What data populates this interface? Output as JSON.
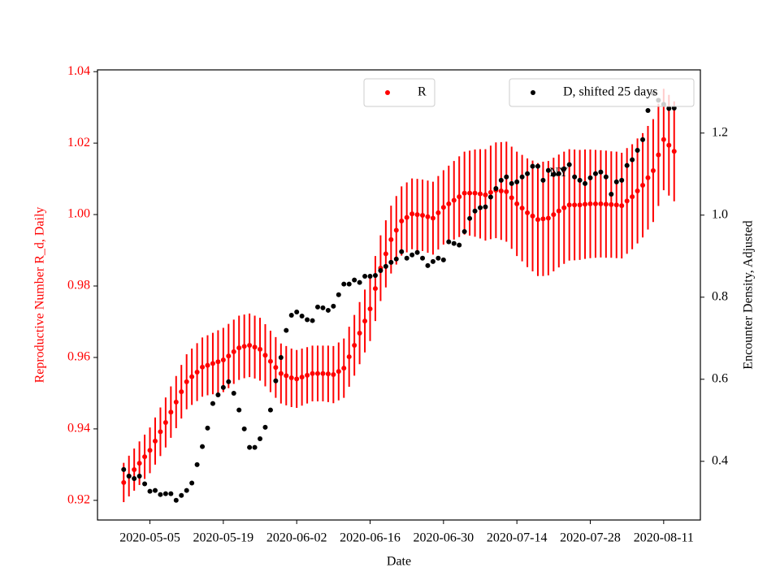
{
  "chart_data": {
    "type": "scatter",
    "annotations": [
      {
        "text": "NY",
        "x": "2020-07-22",
        "y": 1.0115
      }
    ],
    "xlabel": "Date",
    "ylabel": "Reproductive Number R_d, Daily",
    "y2label": "Encounter Density, Adjusted",
    "xlim": [
      "2020-04-25",
      "2020-08-18"
    ],
    "xticks": [
      "2020-05-05",
      "2020-05-19",
      "2020-06-02",
      "2020-06-16",
      "2020-06-30",
      "2020-07-14",
      "2020-07-28",
      "2020-08-11"
    ],
    "ylim": [
      0.9145,
      1.0405
    ],
    "yticks": [
      0.92,
      0.94,
      0.96,
      0.98,
      {
        "value": 1,
        "label": "1.00"
      },
      1.02,
      1.04
    ],
    "y2lim": [
      0.257,
      1.354
    ],
    "y2ticks": [
      0.4,
      0.6,
      0.8,
      {
        "value": 1,
        "label": "1.0"
      },
      1.2
    ],
    "start": "2020-04-30",
    "series": [
      {
        "name": "R",
        "color": "#ff0000",
        "axis": "y",
        "values": [
          0.925,
          0.9268,
          0.9286,
          0.9304,
          0.9322,
          0.934,
          0.9366,
          0.9392,
          0.9418,
          0.9447,
          0.9475,
          0.9504,
          0.9532,
          0.9546,
          0.9559,
          0.9573,
          0.9578,
          0.9583,
          0.9588,
          0.9593,
          0.9604,
          0.9616,
          0.9627,
          0.9631,
          0.9634,
          0.9629,
          0.9623,
          0.9606,
          0.9589,
          0.9572,
          0.9555,
          0.9549,
          0.9543,
          0.954,
          0.9545,
          0.955,
          0.9555,
          0.9555,
          0.9555,
          0.9554,
          0.9552,
          0.9561,
          0.957,
          0.9602,
          0.9634,
          0.9668,
          0.9702,
          0.9736,
          0.9793,
          0.985,
          0.989,
          0.993,
          0.9956,
          0.9982,
          0.9992,
          1.0002,
          1.0,
          0.9998,
          0.9994,
          0.999,
          1.0005,
          1.002,
          1.003,
          1.004,
          1.005,
          1.006,
          1.006,
          1.006,
          1.0058,
          1.0055,
          1.0062,
          1.0068,
          1.0066,
          1.0064,
          1.0047,
          1.003,
          1.0018,
          1.0005,
          0.9996,
          0.9986,
          0.9988,
          0.999,
          1.0,
          1.001,
          1.0019,
          1.0027,
          1.0027,
          1.0027,
          1.0029,
          1.003,
          1.003,
          1.003,
          1.0029,
          1.0028,
          1.0027,
          1.0025,
          1.0038,
          1.005,
          1.0066,
          1.0082,
          1.0103,
          1.0123,
          1.0167,
          1.021,
          1.0194,
          1.0177
        ],
        "errors": [
          0.0055,
          0.0057,
          0.0059,
          0.0061,
          0.0062,
          0.0064,
          0.0066,
          0.0068,
          0.007,
          0.0072,
          0.0073,
          0.0075,
          0.0077,
          0.0079,
          0.0081,
          0.0083,
          0.0084,
          0.0086,
          0.0088,
          0.009,
          0.009,
          0.009,
          0.009,
          0.0089,
          0.0089,
          0.0088,
          0.0088,
          0.0087,
          0.0086,
          0.0085,
          0.0084,
          0.0083,
          0.0082,
          0.0081,
          0.008,
          0.0079,
          0.0078,
          0.0078,
          0.0078,
          0.0079,
          0.008,
          0.0081,
          0.0083,
          0.0084,
          0.0085,
          0.0087,
          0.0088,
          0.009,
          0.0091,
          0.0092,
          0.0094,
          0.0095,
          0.0096,
          0.0097,
          0.0098,
          0.0099,
          0.01,
          0.01,
          0.0101,
          0.0102,
          0.0103,
          0.0104,
          0.0107,
          0.011,
          0.0113,
          0.0116,
          0.0119,
          0.0122,
          0.0125,
          0.0128,
          0.0131,
          0.0134,
          0.0137,
          0.014,
          0.0143,
          0.0146,
          0.0149,
          0.0152,
          0.0155,
          0.0158,
          0.016,
          0.016,
          0.0159,
          0.0158,
          0.0157,
          0.0156,
          0.0155,
          0.0154,
          0.0153,
          0.0152,
          0.0151,
          0.015,
          0.015,
          0.0149,
          0.0149,
          0.0148,
          0.0148,
          0.0147,
          0.0147,
          0.0146,
          0.0145,
          0.0144,
          0.0143,
          0.0142,
          0.0141,
          0.014
        ]
      },
      {
        "name": "D, shifted 25 days",
        "color": "#000000",
        "axis": "y2",
        "values": [
          0.38,
          0.364,
          0.358,
          0.364,
          0.345,
          0.327,
          0.329,
          0.319,
          0.321,
          0.321,
          0.305,
          0.317,
          0.329,
          0.347,
          0.392,
          0.436,
          0.481,
          0.541,
          0.562,
          0.58,
          0.594,
          0.566,
          0.525,
          0.479,
          0.434,
          0.434,
          0.455,
          0.483,
          0.525,
          0.596,
          0.653,
          0.719,
          0.756,
          0.764,
          0.754,
          0.745,
          0.743,
          0.776,
          0.774,
          0.768,
          0.778,
          0.806,
          0.832,
          0.832,
          0.842,
          0.836,
          0.851,
          0.851,
          0.853,
          0.865,
          0.875,
          0.885,
          0.893,
          0.911,
          0.895,
          0.903,
          0.909,
          0.895,
          0.877,
          0.887,
          0.895,
          0.891,
          0.935,
          0.931,
          0.927,
          0.96,
          0.992,
          1.01,
          1.018,
          1.02,
          1.044,
          1.065,
          1.085,
          1.093,
          1.077,
          1.081,
          1.093,
          1.101,
          1.119,
          1.119,
          1.085,
          1.109,
          1.099,
          1.101,
          1.113,
          1.123,
          1.093,
          1.085,
          1.077,
          1.091,
          1.101,
          1.105,
          1.093,
          1.051,
          1.081,
          1.085,
          1.121,
          1.135,
          1.158,
          1.184,
          1.255,
          1.297,
          1.28,
          1.27,
          1.26,
          1.261
        ]
      }
    ]
  }
}
